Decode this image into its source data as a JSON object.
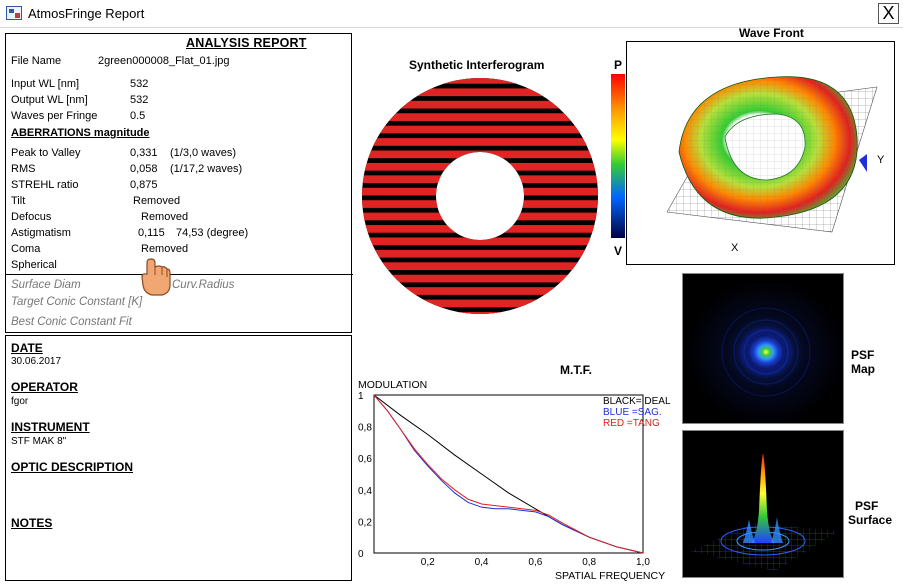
{
  "window": {
    "title": "AtmosFringe  Report",
    "close_label": "X"
  },
  "report": {
    "title": "ANALYSIS REPORT",
    "file_name_label": "File Name",
    "file_name_value": "2green000008_Flat_01.jpg",
    "input_wl_label": "Input  WL [nm]",
    "input_wl_value": "532",
    "output_wl_label": "Output WL [nm]",
    "output_wl_value": "532",
    "waves_label": "Waves per Fringe",
    "waves_value": "0.5",
    "aberrations_heading": "ABERRATIONS magnitude",
    "ptv_label": "Peak to Valley",
    "ptv_value": "0,331",
    "ptv_extra": "(1/3,0 waves)",
    "rms_label": "RMS",
    "rms_value": "0,058",
    "rms_extra": "(1/17,2 waves)",
    "strehl_label": "STREHL ratio",
    "strehl_value": "0,875",
    "tilt_label": "Tilt",
    "tilt_value": "Removed",
    "defocus_label": "Defocus",
    "defocus_value": "Removed",
    "astig_label": "Astigmatism",
    "astig_value": "0,115",
    "astig_extra": "74,53  (degree)",
    "coma_label": "Coma",
    "coma_value": "Removed",
    "spherical_label": "Spherical",
    "surface_diam_label": "Surface Diam",
    "curv_radius_label": "Curv.Radius",
    "target_conic_label": "Target Conic Constant [K]",
    "best_conic_label": "Best Conic Constant Fit"
  },
  "info": {
    "date_label": "DATE",
    "date_value": "30.06.2017",
    "operator_label": "OPERATOR",
    "operator_value": "fgor",
    "instrument_label": "INSTRUMENT",
    "instrument_value": "STF MAK 8\"",
    "optic_label": "OPTIC DESCRIPTION",
    "notes_label": "NOTES"
  },
  "interferogram": {
    "title": "Synthetic Interferogram",
    "fringe_color": "#e02424",
    "dark_color": "#000000"
  },
  "wavefront": {
    "title": "Wave Front",
    "scale_top": "P",
    "scale_bottom": "V",
    "axis_x": "X",
    "axis_y": "Y"
  },
  "psf": {
    "map_label_1": "PSF",
    "map_label_2": "Map",
    "surface_label_1": "PSF",
    "surface_label_2": "Surface"
  },
  "icons": {
    "app": "app-icon",
    "close": "close-icon",
    "hand": "hand-cursor-icon"
  },
  "chart_data": {
    "type": "line",
    "title": "M.T.F.",
    "ylabel": "MODULATION",
    "xlabel": "SPATIAL FREQUENCY",
    "xlim": [
      0,
      1
    ],
    "ylim": [
      0,
      1
    ],
    "x_ticks": [
      "0,2",
      "0,4",
      "0,6",
      "0,8",
      "1,0"
    ],
    "y_ticks": [
      "0",
      "0,2",
      "0,4",
      "0,6",
      "0,8",
      "1"
    ],
    "legend": [
      "BLACK=IDEAL",
      "BLUE  =SAG.",
      "RED   =TANG"
    ],
    "legend_position": "top-right",
    "series": [
      {
        "name": "IDEAL",
        "color": "#000000",
        "x": [
          0,
          0.1,
          0.2,
          0.3,
          0.4,
          0.5,
          0.6,
          0.65,
          0.7,
          0.8,
          0.9,
          1.0
        ],
        "y": [
          1.0,
          0.87,
          0.75,
          0.62,
          0.5,
          0.38,
          0.28,
          0.23,
          0.18,
          0.1,
          0.04,
          0.0
        ]
      },
      {
        "name": "SAG.",
        "color": "#1f2fd8",
        "x": [
          0,
          0.05,
          0.1,
          0.15,
          0.2,
          0.25,
          0.3,
          0.35,
          0.4,
          0.45,
          0.5,
          0.55,
          0.6,
          0.65,
          0.7,
          0.8,
          0.9,
          1.0
        ],
        "y": [
          1.0,
          0.9,
          0.78,
          0.65,
          0.55,
          0.46,
          0.38,
          0.32,
          0.29,
          0.28,
          0.28,
          0.27,
          0.26,
          0.23,
          0.18,
          0.1,
          0.04,
          0.0
        ]
      },
      {
        "name": "TANG",
        "color": "#e02020",
        "x": [
          0,
          0.05,
          0.1,
          0.15,
          0.2,
          0.25,
          0.3,
          0.35,
          0.4,
          0.45,
          0.5,
          0.55,
          0.6,
          0.65,
          0.7,
          0.8,
          0.9,
          1.0
        ],
        "y": [
          1.0,
          0.9,
          0.78,
          0.66,
          0.56,
          0.47,
          0.4,
          0.34,
          0.31,
          0.3,
          0.29,
          0.28,
          0.27,
          0.24,
          0.19,
          0.1,
          0.04,
          0.0
        ]
      }
    ]
  }
}
